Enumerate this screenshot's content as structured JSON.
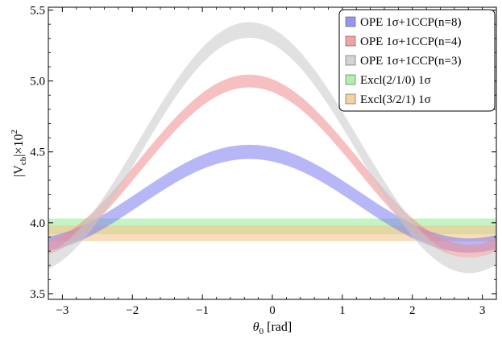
{
  "chart_data": {
    "type": "area",
    "title": "",
    "xlabel": "θ",
    "xlabel_sub": "0",
    "xlabel_unit": " [rad]",
    "ylabel_main": "|V",
    "ylabel_sub": "cb",
    "ylabel_mid": "|×10",
    "ylabel_sup": "2",
    "xlim": [
      -3.2,
      3.2
    ],
    "ylim": [
      3.46,
      5.52
    ],
    "xticks": [
      -3,
      -2,
      -1,
      0,
      1,
      2,
      3
    ],
    "xtick_labels": [
      "−3",
      "−2",
      "−1",
      "0",
      "1",
      "2",
      "3"
    ],
    "yticks": [
      3.5,
      4.0,
      4.5,
      5.0,
      5.5
    ],
    "ytick_labels": [
      "3.5",
      "4.0",
      "4.5",
      "5.0",
      "5.5"
    ],
    "legend_position": "top-right",
    "series": [
      {
        "name": "OPE 1σ+1CCP(n=8)",
        "kind": "ope",
        "color": "#7b7bf0",
        "center": 4.17,
        "amplitude": 0.33,
        "phase": -0.33,
        "half_width": 0.05
      },
      {
        "name": "OPE 1σ+1CCP(n=4)",
        "kind": "ope",
        "color": "#f08c8c",
        "center": 4.4,
        "amplitude": 0.6,
        "phase": -0.33,
        "half_width": 0.045
      },
      {
        "name": "OPE 1σ+1CCP(n=3)",
        "kind": "ope",
        "color": "#c8c8c8",
        "center": 4.53,
        "amplitude": 0.83,
        "phase": -0.33,
        "half_width": 0.055
      },
      {
        "name": "Excl(2/1/0) 1σ",
        "kind": "excl",
        "color": "#9ceb9c",
        "low": 3.92,
        "high": 4.03
      },
      {
        "name": "Excl(3/2/1) 1σ",
        "kind": "excl",
        "color": "#f5c58c",
        "low": 3.87,
        "high": 3.98
      }
    ]
  }
}
